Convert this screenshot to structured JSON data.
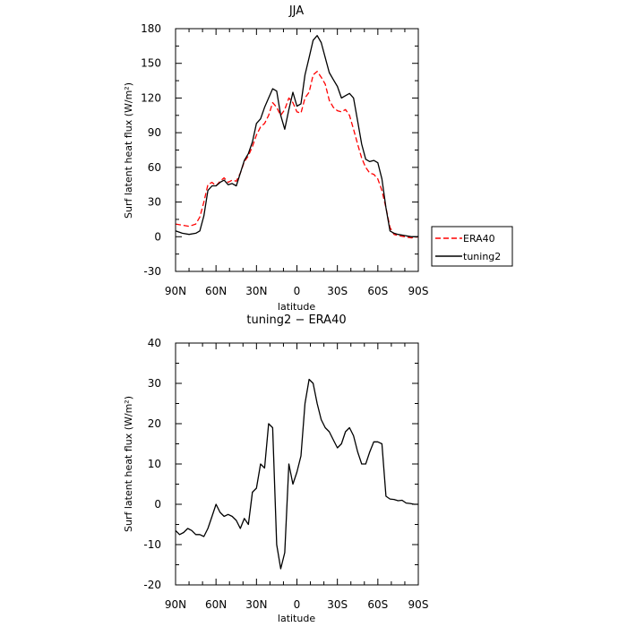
{
  "chart_data": [
    {
      "type": "line",
      "title": "JJA",
      "xlabel": "latitude",
      "ylabel": "Surf latent heat flux (W/m²)",
      "xlim": [
        90,
        -90
      ],
      "ylim": [
        -30,
        180
      ],
      "x_ticks": [
        90,
        60,
        30,
        0,
        -30,
        -60,
        -90
      ],
      "x_tick_labels": [
        "90N",
        "60N",
        "30N",
        "0",
        "30S",
        "60S",
        "90S"
      ],
      "y_ticks": [
        -30,
        0,
        30,
        60,
        90,
        120,
        150,
        180
      ],
      "legend_position": "right",
      "series": [
        {
          "name": "ERA40",
          "color": "#ff0000",
          "dash": "dashed",
          "x": [
            90,
            85,
            80,
            75,
            72,
            69,
            66,
            63,
            60,
            57,
            54,
            51,
            48,
            45,
            42,
            39,
            36,
            33,
            30,
            27,
            24,
            21,
            18,
            15,
            12,
            9,
            6,
            3,
            0,
            -3,
            -6,
            -9,
            -12,
            -15,
            -18,
            -21,
            -24,
            -27,
            -30,
            -33,
            -36,
            -39,
            -42,
            -45,
            -48,
            -51,
            -54,
            -57,
            -60,
            -63,
            -66,
            -69,
            -72,
            -75,
            -80,
            -85,
            -90
          ],
          "y": [
            11,
            10,
            9,
            11,
            17,
            30,
            45,
            47,
            44,
            48,
            51,
            47,
            49,
            48,
            55,
            65,
            70,
            78,
            88,
            95,
            98,
            105,
            116,
            112,
            105,
            110,
            120,
            116,
            108,
            107,
            120,
            125,
            140,
            143,
            138,
            132,
            118,
            112,
            109,
            108,
            110,
            105,
            93,
            80,
            68,
            60,
            55,
            54,
            50,
            40,
            25,
            8,
            2,
            1,
            0,
            -1,
            0
          ]
        },
        {
          "name": "tuning2",
          "color": "#000000",
          "dash": "solid",
          "x": [
            90,
            85,
            80,
            75,
            72,
            69,
            66,
            63,
            60,
            57,
            54,
            51,
            48,
            45,
            42,
            39,
            36,
            33,
            30,
            27,
            24,
            21,
            18,
            15,
            12,
            9,
            6,
            3,
            0,
            -3,
            -6,
            -9,
            -12,
            -15,
            -18,
            -21,
            -24,
            -27,
            -30,
            -33,
            -36,
            -39,
            -42,
            -45,
            -48,
            -51,
            -54,
            -57,
            -60,
            -63,
            -66,
            -69,
            -72,
            -75,
            -80,
            -85,
            -90
          ],
          "y": [
            5,
            3,
            2,
            3,
            5,
            18,
            40,
            44,
            44,
            47,
            49,
            45,
            46,
            44,
            55,
            66,
            72,
            82,
            98,
            102,
            112,
            120,
            128,
            126,
            105,
            93,
            110,
            125,
            113,
            115,
            140,
            155,
            170,
            174,
            168,
            155,
            142,
            136,
            130,
            120,
            122,
            124,
            120,
            100,
            80,
            67,
            65,
            66,
            64,
            50,
            25,
            5,
            3,
            2,
            1,
            0,
            0
          ]
        }
      ]
    },
    {
      "type": "line",
      "title": "tuning2 − ERA40",
      "xlabel": "latitude",
      "ylabel": "Surf latent heat flux (W/m²)",
      "xlim": [
        90,
        -90
      ],
      "ylim": [
        -20,
        40
      ],
      "x_ticks": [
        90,
        60,
        30,
        0,
        -30,
        -60,
        -90
      ],
      "x_tick_labels": [
        "90N",
        "60N",
        "30N",
        "0",
        "30S",
        "60S",
        "90S"
      ],
      "y_ticks": [
        -20,
        -10,
        0,
        10,
        20,
        30,
        40
      ],
      "series": [
        {
          "color": "#000000",
          "dash": "solid",
          "x": [
            90,
            87,
            84,
            81,
            78,
            75,
            72,
            69,
            66,
            63,
            60,
            57,
            54,
            51,
            48,
            45,
            42,
            39,
            36,
            33,
            30,
            27,
            24,
            21,
            18,
            15,
            12,
            9,
            6,
            3,
            0,
            -3,
            -6,
            -9,
            -12,
            -15,
            -18,
            -21,
            -24,
            -27,
            -30,
            -33,
            -36,
            -39,
            -42,
            -45,
            -48,
            -51,
            -54,
            -57,
            -60,
            -63,
            -66,
            -69,
            -72,
            -75,
            -78,
            -81,
            -84,
            -87,
            -90
          ],
          "y": [
            -6.5,
            -7.5,
            -7,
            -6,
            -6.5,
            -7.5,
            -7.5,
            -8,
            -6,
            -3,
            0,
            -2,
            -3,
            -2.5,
            -3,
            -4,
            -6,
            -3.5,
            -5,
            3,
            4,
            10,
            9,
            20,
            19,
            -10,
            -16,
            -12,
            10,
            5,
            8,
            12,
            25,
            31,
            30,
            25,
            21,
            19,
            18,
            16,
            14,
            15,
            18,
            19,
            17,
            13,
            10,
            10,
            13,
            15.5,
            15.5,
            15,
            2,
            1.3,
            1.2,
            0.9,
            1,
            0.3,
            0.2,
            0,
            0
          ]
        }
      ]
    }
  ]
}
